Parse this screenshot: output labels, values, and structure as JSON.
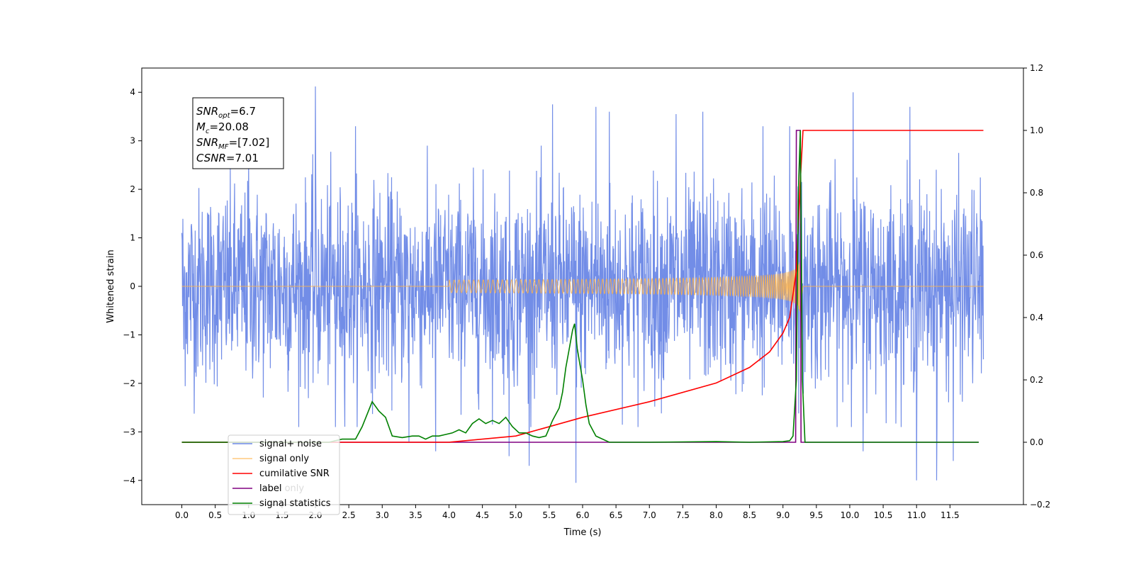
{
  "chart_data": {
    "type": "line",
    "xlabel": "Time (s)",
    "ylabel": "Whitened strain",
    "xlim": [
      -0.6,
      12.6
    ],
    "ylim": [
      -4.5,
      4.5
    ],
    "y2lim": [
      -0.2,
      1.2
    ],
    "x_ticks": [
      "0.0",
      "0.5",
      "1.0",
      "1.5",
      "2.0",
      "2.5",
      "3.0",
      "3.5",
      "4.0",
      "4.5",
      "5.0",
      "5.5",
      "6.0",
      "6.5",
      "7.0",
      "7.5",
      "8.0",
      "8.5",
      "9.0",
      "9.5",
      "10.0",
      "10.5",
      "11.0",
      "11.5"
    ],
    "y_ticks": [
      "−4",
      "−3",
      "−2",
      "−1",
      "0",
      "1",
      "2",
      "3",
      "4"
    ],
    "y2_ticks": [
      "−0.2",
      "0.0",
      "0.2",
      "0.4",
      "0.6",
      "0.8",
      "1.0",
      "1.2"
    ],
    "grid": false,
    "legend_position": "lower-left",
    "annotation": {
      "lines": [
        {
          "sym": "SNR",
          "sub": "opt",
          "rest": "=6.7"
        },
        {
          "sym": "M",
          "sub": "c",
          "rest": "=20.08"
        },
        {
          "sym": "SNR",
          "sub": "MF",
          "rest": "=[7.02]"
        },
        {
          "sym": "CSNR",
          "sub": "",
          "rest": "=7.01"
        }
      ]
    },
    "series": [
      {
        "name": "signal+ noise",
        "color": "#6a87e6",
        "axis": "left",
        "noise_sigma": 1.0,
        "x_range": [
          0,
          12
        ],
        "peaks": [
          [
            0.0,
            1.1
          ],
          [
            0.03,
            -1.3
          ],
          [
            1.0,
            2.6
          ],
          [
            2.0,
            4.12
          ],
          [
            2.3,
            -2.9
          ],
          [
            2.6,
            3.3
          ],
          [
            3.4,
            -3.2
          ],
          [
            3.8,
            -3.4
          ],
          [
            4.9,
            -3.5
          ],
          [
            5.2,
            -3.7
          ],
          [
            5.55,
            3.75
          ],
          [
            5.9,
            -4.05
          ],
          [
            6.2,
            3.7
          ],
          [
            6.4,
            3.6
          ],
          [
            7.4,
            3.55
          ],
          [
            7.8,
            3.6
          ],
          [
            8.7,
            3.3
          ],
          [
            9.1,
            3.3
          ],
          [
            10.05,
            4.0
          ],
          [
            10.2,
            -3.4
          ],
          [
            10.9,
            3.7
          ],
          [
            11.0,
            -4.0
          ],
          [
            11.3,
            -4.0
          ],
          [
            11.55,
            -3.6
          ]
        ]
      },
      {
        "name": "signal only",
        "color": "#ffb347",
        "axis": "left",
        "chirp": {
          "start": 4.0,
          "merge": 9.25,
          "end": 9.3,
          "peak_amplitude": 0.7
        }
      },
      {
        "name": "cumilative SNR",
        "color": "#ff0000",
        "axis": "right",
        "x": [
          0.0,
          4.0,
          5.0,
          6.0,
          7.0,
          8.0,
          8.5,
          8.8,
          9.0,
          9.1,
          9.2,
          9.25,
          9.3,
          12.0
        ],
        "y": [
          0.0,
          0.0,
          0.02,
          0.08,
          0.13,
          0.19,
          0.24,
          0.29,
          0.35,
          0.4,
          0.55,
          0.8,
          1.0,
          1.0
        ]
      },
      {
        "name": "label",
        "color": "#800080",
        "axis": "right",
        "x": [
          0.0,
          9.19,
          9.2,
          9.26,
          9.27,
          11.93
        ],
        "y": [
          0.0,
          0.0,
          1.0,
          1.0,
          0.0,
          0.0
        ]
      },
      {
        "name": "label only",
        "color": "#dddddd",
        "axis": "right",
        "legend_only": true
      },
      {
        "name": "signal statistics",
        "color": "#008000",
        "axis": "right",
        "x": [
          0.0,
          2.2,
          2.4,
          2.6,
          2.7,
          2.85,
          2.95,
          3.05,
          3.15,
          3.3,
          3.45,
          3.55,
          3.65,
          3.75,
          3.85,
          3.95,
          4.05,
          4.15,
          4.25,
          4.35,
          4.45,
          4.55,
          4.65,
          4.75,
          4.85,
          4.95,
          5.05,
          5.15,
          5.25,
          5.35,
          5.45,
          5.55,
          5.65,
          5.7,
          5.75,
          5.8,
          5.85,
          5.88,
          5.92,
          5.96,
          6.0,
          6.05,
          6.1,
          6.2,
          6.4,
          6.6,
          7.0,
          8.0,
          8.5,
          9.0,
          9.1,
          9.15,
          9.2,
          9.23,
          9.26,
          9.29,
          9.33,
          9.4,
          11.93
        ],
        "y": [
          0.0,
          0.0,
          0.01,
          0.01,
          0.05,
          0.13,
          0.1,
          0.08,
          0.02,
          0.015,
          0.02,
          0.02,
          0.01,
          0.02,
          0.02,
          0.025,
          0.03,
          0.04,
          0.03,
          0.06,
          0.075,
          0.06,
          0.07,
          0.06,
          0.08,
          0.05,
          0.03,
          0.03,
          0.02,
          0.015,
          0.02,
          0.07,
          0.11,
          0.16,
          0.24,
          0.3,
          0.36,
          0.38,
          0.3,
          0.25,
          0.2,
          0.12,
          0.06,
          0.02,
          0.0,
          0.0,
          0.0,
          0.002,
          0.0,
          0.002,
          0.005,
          0.02,
          0.2,
          0.8,
          1.0,
          0.2,
          0.0,
          0.0,
          0.0
        ]
      }
    ]
  }
}
